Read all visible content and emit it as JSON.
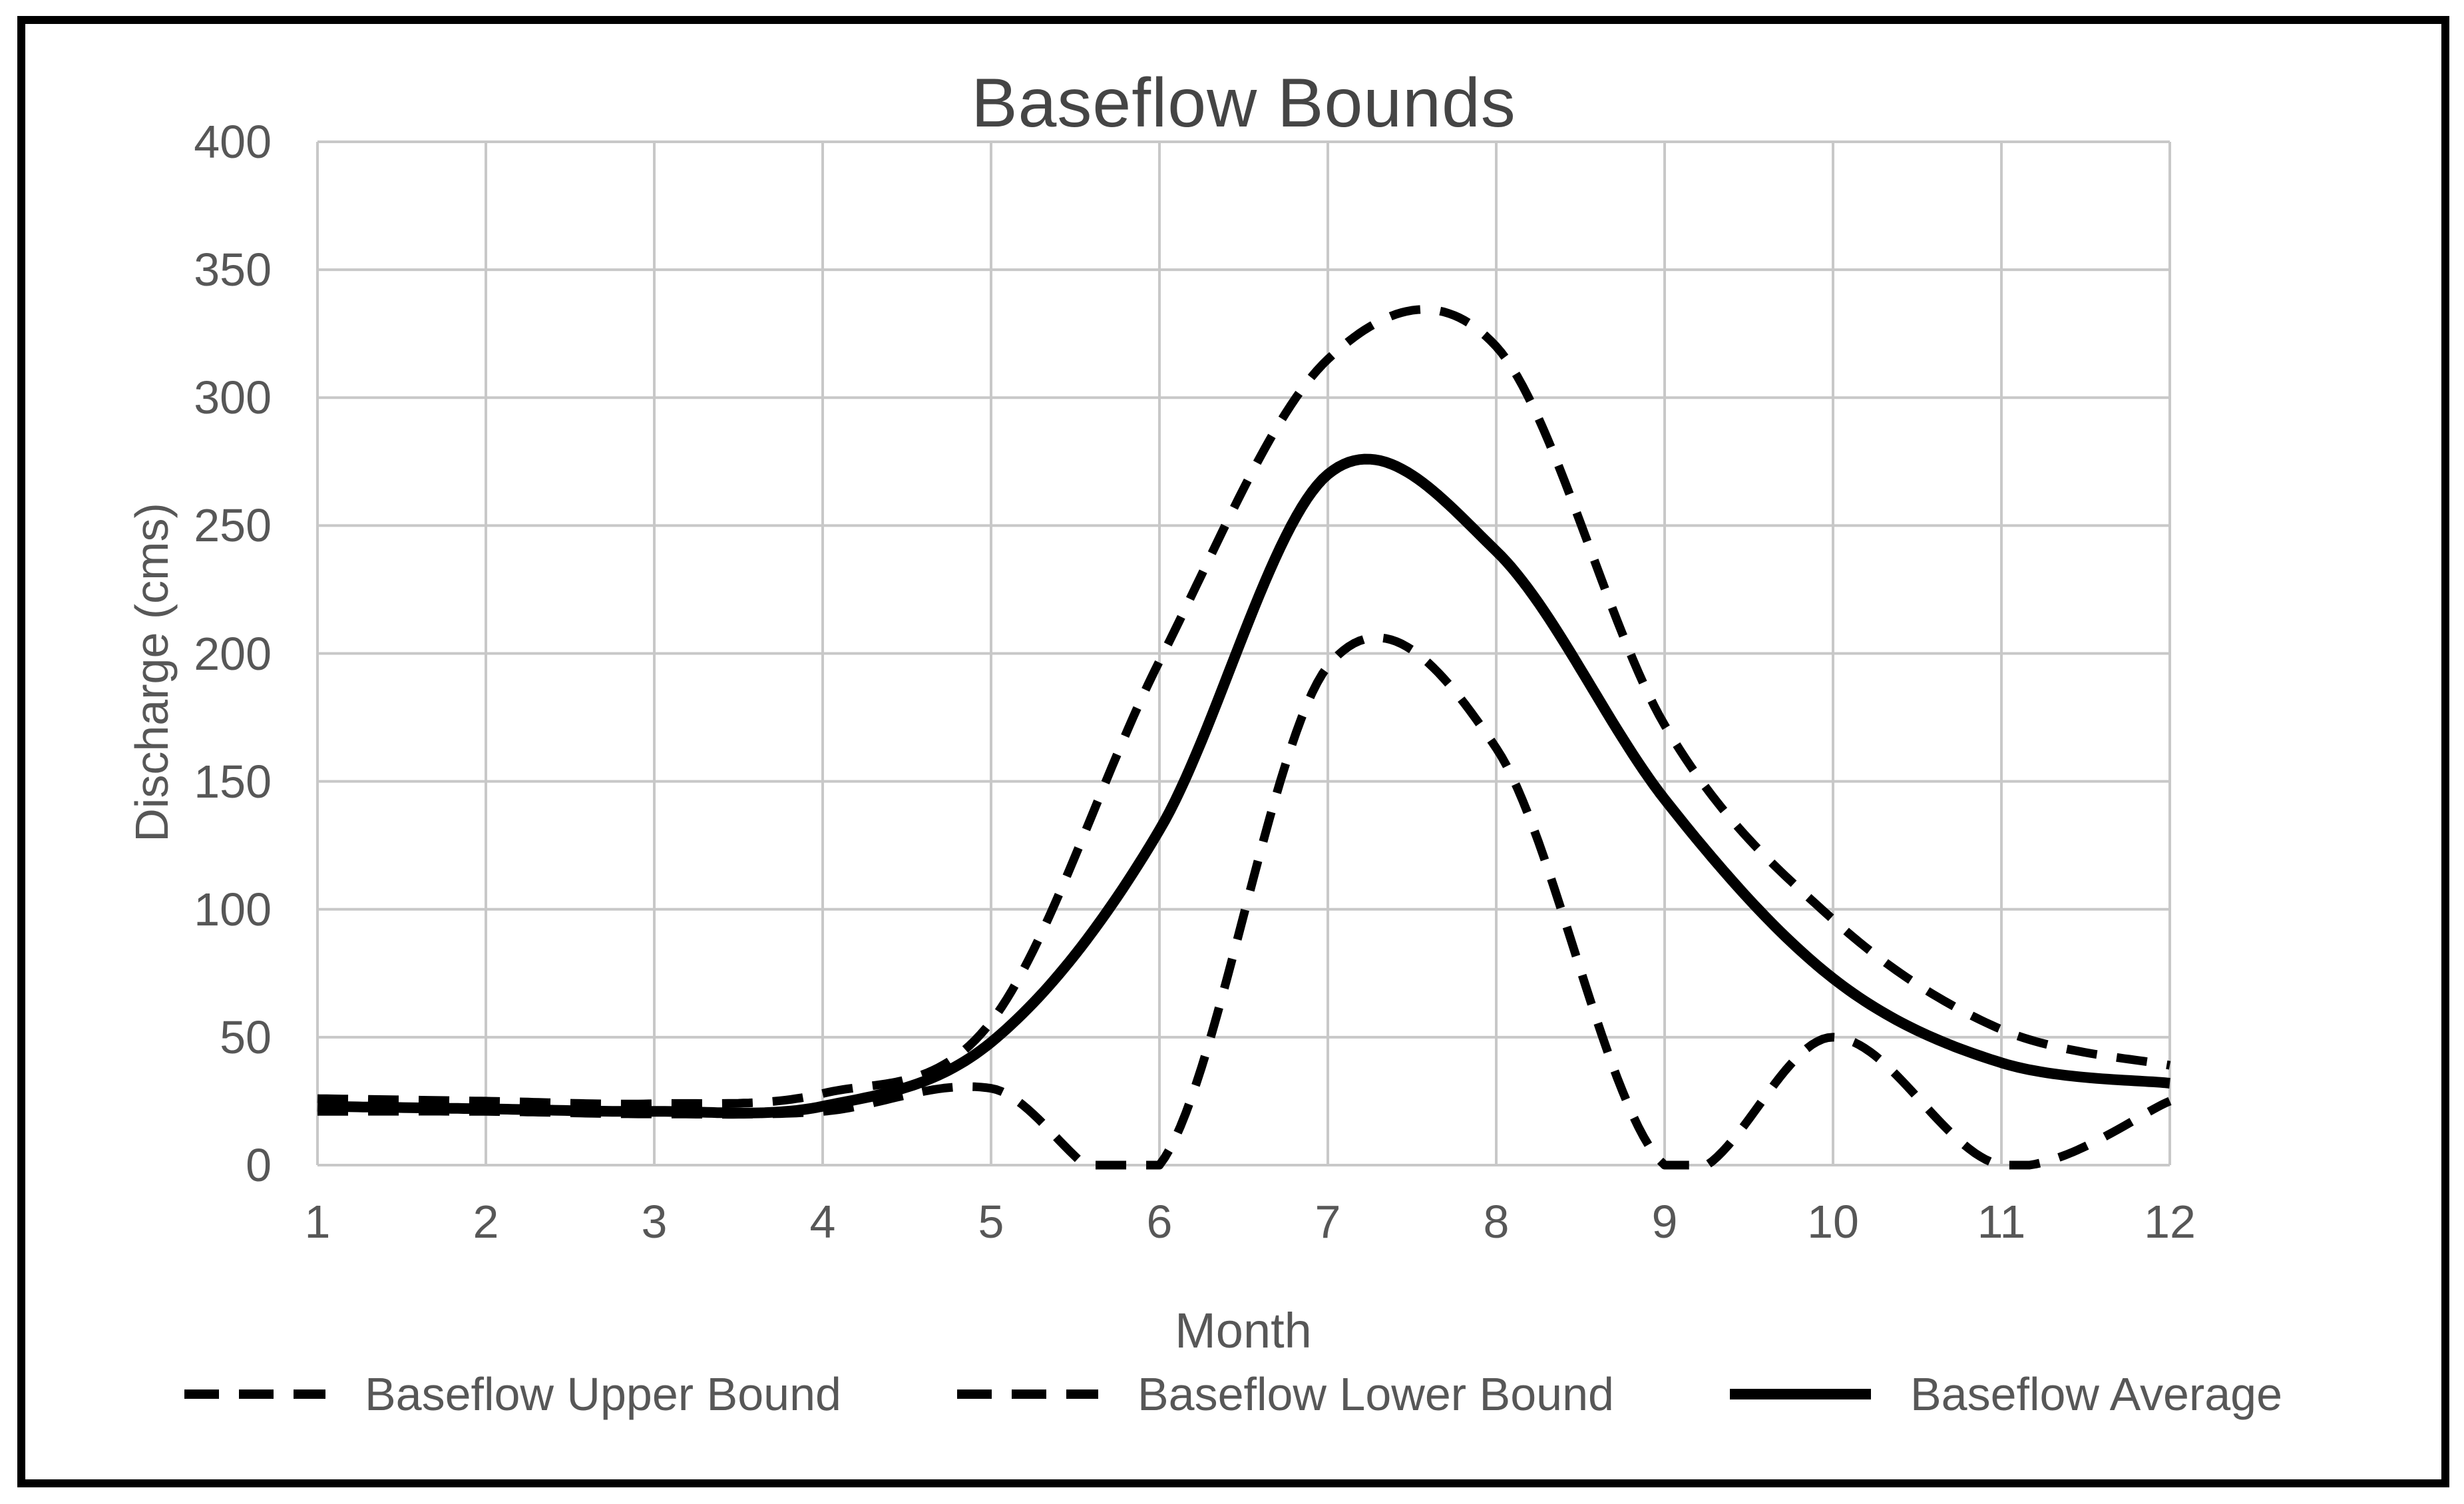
{
  "title": "Baseflow Bounds",
  "axes": {
    "x_label": "Month",
    "y_label": "Discharge (cms)",
    "x_ticks": [
      "1",
      "2",
      "3",
      "4",
      "5",
      "6",
      "7",
      "8",
      "9",
      "10",
      "11",
      "12"
    ],
    "y_ticks": [
      "0",
      "50",
      "100",
      "150",
      "200",
      "250",
      "300",
      "350",
      "400"
    ]
  },
  "legend": [
    {
      "label": "Baseflow Upper Bound",
      "style": "dashed"
    },
    {
      "label": "Baseflow Lower Bound",
      "style": "dashed"
    },
    {
      "label": "Baseflow Average",
      "style": "solid"
    }
  ],
  "colors": {
    "line": "#000000",
    "grid": "#c8c8c8",
    "text": "#575757",
    "title_text": "#454545",
    "border": "#000000",
    "background": "#ffffff"
  },
  "chart_data": {
    "type": "line",
    "title": "Baseflow Bounds",
    "xlabel": "Month",
    "ylabel": "Discharge (cms)",
    "x": [
      1,
      2,
      3,
      4,
      5,
      6,
      7,
      8,
      9,
      10,
      11,
      12
    ],
    "series": [
      {
        "name": "Baseflow Upper Bound",
        "dash": true,
        "values": [
          26,
          25,
          24,
          28,
          56,
          197,
          315,
          320,
          172,
          96,
          53,
          39
        ]
      },
      {
        "name": "Baseflow Lower Bound",
        "dash": true,
        "values": [
          21,
          21,
          20,
          21,
          30,
          0,
          195,
          163,
          0,
          50,
          0,
          25
        ]
      },
      {
        "name": "Baseflow Average",
        "dash": false,
        "values": [
          23,
          22,
          21,
          23,
          48,
          131,
          270,
          240,
          143,
          73,
          40,
          32
        ]
      }
    ],
    "xlim": [
      1,
      12
    ],
    "ylim": [
      0,
      400
    ],
    "y_tick_step": 50,
    "grid": true,
    "smoothed": true,
    "legend_position": "bottom"
  }
}
